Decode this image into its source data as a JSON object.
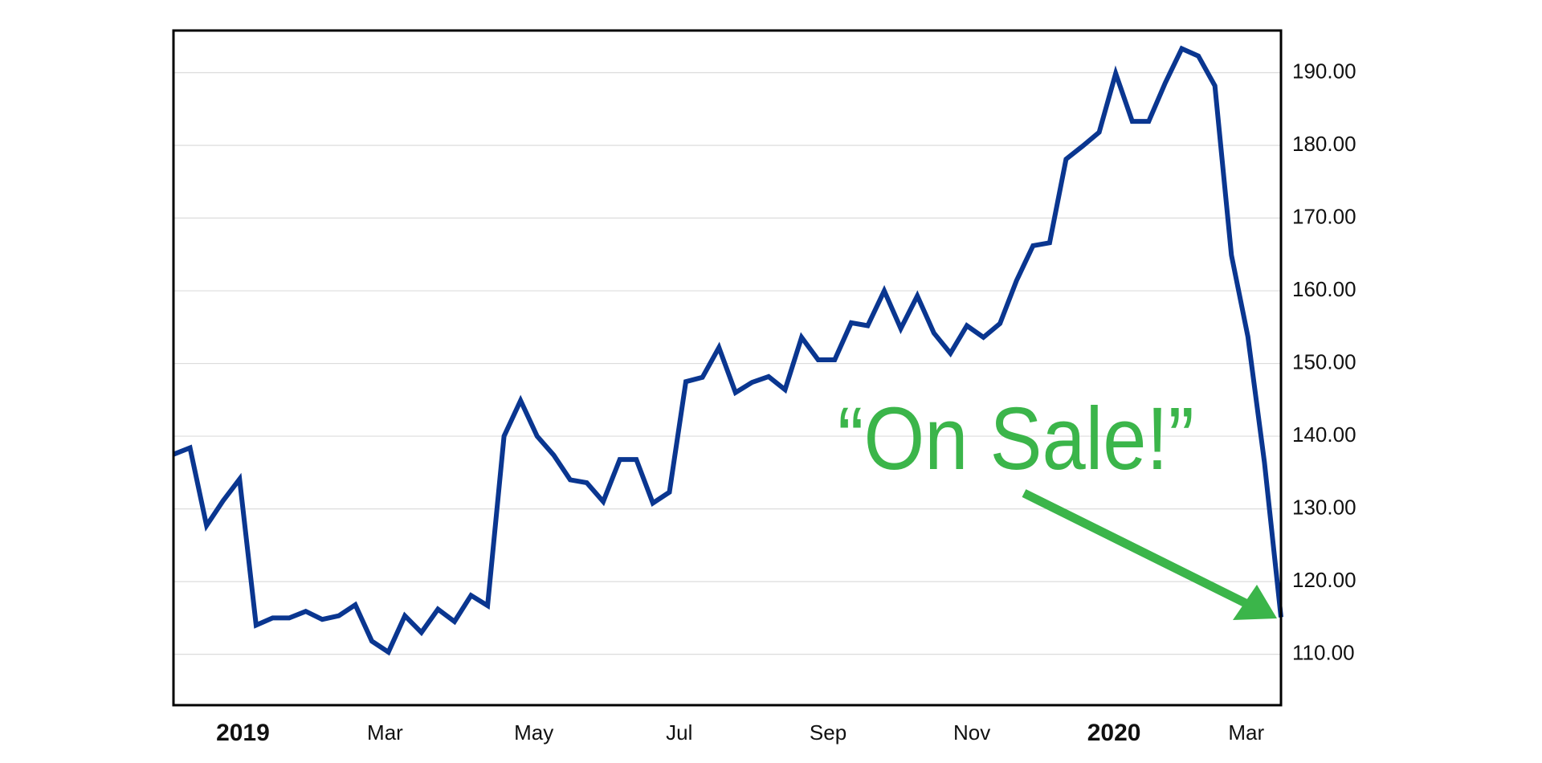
{
  "chart_data": {
    "type": "line",
    "annotation": "“On Sale!”",
    "x": [
      0,
      1,
      2,
      3,
      4,
      5,
      6,
      7,
      8,
      9,
      10,
      11,
      12,
      13,
      14,
      15,
      16,
      17,
      18,
      19,
      20,
      21,
      22,
      23,
      24,
      25,
      26,
      27,
      28,
      29,
      30,
      31,
      32,
      33,
      34,
      35,
      36,
      37,
      38,
      39,
      40,
      41,
      42,
      43,
      44,
      45,
      46,
      47,
      48,
      49,
      50,
      51,
      52,
      53,
      54,
      55,
      56,
      57,
      58,
      59,
      60,
      61,
      62,
      63,
      64,
      65,
      66,
      67
    ],
    "series": [
      {
        "color": "#0a3690",
        "values": [
          137.5,
          138.4,
          127.7,
          131.1,
          134.1,
          114.0,
          115.0,
          115.0,
          115.9,
          114.8,
          115.3,
          116.8,
          111.8,
          110.3,
          115.3,
          113.0,
          116.2,
          114.5,
          118.1,
          116.7,
          140.0,
          144.9,
          140.0,
          137.4,
          134.0,
          133.6,
          131.0,
          136.8,
          136.8,
          130.8,
          132.3,
          147.5,
          148.1,
          152.2,
          146.0,
          147.4,
          148.2,
          146.4,
          153.6,
          150.5,
          150.5,
          155.6,
          155.2,
          160.0,
          154.8,
          159.3,
          154.2,
          151.4,
          155.2,
          153.6,
          155.5,
          161.4,
          166.2,
          166.6,
          178.1,
          179.9,
          181.8,
          189.9,
          183.3,
          183.3,
          188.6,
          193.3,
          192.3,
          188.2,
          164.9,
          153.7,
          136.4,
          115.1
        ]
      }
    ],
    "xlim": [
      0,
      67
    ],
    "xticks": [
      {
        "value": 4.2,
        "label": "2019"
      },
      {
        "value": 12.8,
        "label": "Mar"
      },
      {
        "value": 21.8,
        "label": "May"
      },
      {
        "value": 30.6,
        "label": "Jul"
      },
      {
        "value": 39.6,
        "label": "Sep"
      },
      {
        "value": 48.3,
        "label": "Nov"
      },
      {
        "value": 56.9,
        "label": "2020"
      },
      {
        "value": 64.9,
        "label": "Mar"
      }
    ],
    "ylim": [
      103,
      195.8
    ],
    "yticks": [
      {
        "value": 110,
        "label": "110.00"
      },
      {
        "value": 120,
        "label": "120.00"
      },
      {
        "value": 130,
        "label": "130.00"
      },
      {
        "value": 140,
        "label": "140.00"
      },
      {
        "value": 150,
        "label": "150.00"
      },
      {
        "value": 160,
        "label": "160.00"
      },
      {
        "value": 170,
        "label": "170.00"
      },
      {
        "value": 180,
        "label": "180.00"
      },
      {
        "value": 190,
        "label": "190.00"
      }
    ],
    "grid": true,
    "y_axis_side": "right",
    "annotation_color": "#3bb54a"
  }
}
